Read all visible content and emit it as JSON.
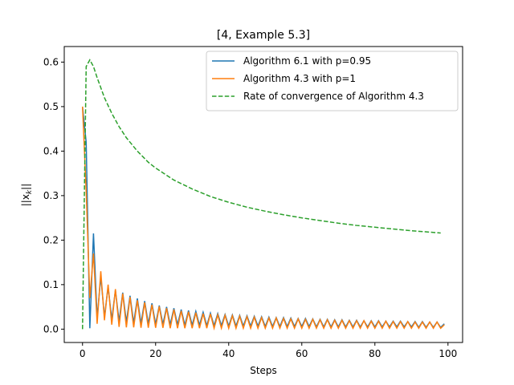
{
  "chart_data": {
    "type": "line",
    "title": "[4, Example 5.3]",
    "xlabel": "Steps",
    "ylabel": "||x_k||",
    "xlim": [
      -5,
      104
    ],
    "ylim": [
      -0.03,
      0.635
    ],
    "xticks": [
      0,
      20,
      40,
      60,
      80,
      100
    ],
    "yticks": [
      0.0,
      0.1,
      0.2,
      0.3,
      0.4,
      0.5,
      0.6
    ],
    "grid": false,
    "legend_position": "upper-right",
    "series": [
      {
        "name": "Algorithm 6.1 with p=0.95",
        "color": "#1f77b4",
        "style": "solid",
        "x": [
          0,
          1,
          2,
          3,
          4,
          5,
          6,
          7,
          8,
          9,
          10,
          11,
          12,
          13,
          14,
          15,
          16,
          17,
          18,
          19,
          20,
          21,
          22,
          23,
          24,
          25,
          26,
          27,
          28,
          29,
          30,
          31,
          32,
          33,
          34,
          35,
          36,
          37,
          38,
          39,
          40,
          41,
          42,
          43,
          44,
          45,
          46,
          47,
          48,
          49,
          50,
          51,
          52,
          53,
          54,
          55,
          56,
          57,
          58,
          59,
          60,
          61,
          62,
          63,
          64,
          65,
          66,
          67,
          68,
          69,
          70,
          71,
          72,
          73,
          74,
          75,
          76,
          77,
          78,
          79,
          80,
          81,
          82,
          83,
          84,
          85,
          86,
          87,
          88,
          89,
          90,
          91,
          92,
          93,
          94,
          95,
          96,
          97,
          98,
          99
        ],
        "y": [
          0.5,
          0.42,
          0.002,
          0.215,
          0.025,
          0.118,
          0.028,
          0.095,
          0.022,
          0.087,
          0.018,
          0.082,
          0.016,
          0.075,
          0.014,
          0.069,
          0.013,
          0.063,
          0.012,
          0.058,
          0.011,
          0.053,
          0.011,
          0.05,
          0.01,
          0.047,
          0.01,
          0.044,
          0.009,
          0.042,
          0.009,
          0.04,
          0.009,
          0.038,
          0.008,
          0.036,
          0.008,
          0.035,
          0.008,
          0.033,
          0.007,
          0.032,
          0.007,
          0.031,
          0.007,
          0.03,
          0.007,
          0.029,
          0.007,
          0.028,
          0.006,
          0.027,
          0.006,
          0.026,
          0.006,
          0.026,
          0.006,
          0.025,
          0.006,
          0.024,
          0.006,
          0.024,
          0.006,
          0.023,
          0.005,
          0.022,
          0.005,
          0.022,
          0.005,
          0.021,
          0.005,
          0.021,
          0.005,
          0.02,
          0.005,
          0.02,
          0.005,
          0.019,
          0.005,
          0.019,
          0.005,
          0.019,
          0.005,
          0.018,
          0.005,
          0.018,
          0.005,
          0.018,
          0.005,
          0.017,
          0.005,
          0.017,
          0.004,
          0.017,
          0.004,
          0.016,
          0.004,
          0.016,
          0.004,
          0.012
        ]
      },
      {
        "name": "Algorithm 4.3 with p=1",
        "color": "#ff7f0e",
        "style": "solid",
        "x": [
          0,
          1,
          2,
          3,
          4,
          5,
          6,
          7,
          8,
          9,
          10,
          11,
          12,
          13,
          14,
          15,
          16,
          17,
          18,
          19,
          20,
          21,
          22,
          23,
          24,
          25,
          26,
          27,
          28,
          29,
          30,
          31,
          32,
          33,
          34,
          35,
          36,
          37,
          38,
          39,
          40,
          41,
          42,
          43,
          44,
          45,
          46,
          47,
          48,
          49,
          50,
          51,
          52,
          53,
          54,
          55,
          56,
          57,
          58,
          59,
          60,
          61,
          62,
          63,
          64,
          65,
          66,
          67,
          68,
          69,
          70,
          71,
          72,
          73,
          74,
          75,
          76,
          77,
          78,
          79,
          80,
          81,
          82,
          83,
          84,
          85,
          86,
          87,
          88,
          89,
          90,
          91,
          92,
          93,
          94,
          95,
          96,
          97,
          98,
          99
        ],
        "y": [
          0.5,
          0.31,
          0.07,
          0.17,
          0.012,
          0.13,
          0.02,
          0.1,
          0.01,
          0.09,
          0.005,
          0.08,
          0.004,
          0.072,
          0.004,
          0.065,
          0.003,
          0.06,
          0.003,
          0.055,
          0.003,
          0.051,
          0.003,
          0.047,
          0.002,
          0.044,
          0.002,
          0.041,
          0.002,
          0.039,
          0.002,
          0.037,
          0.002,
          0.035,
          0.002,
          0.034,
          0.002,
          0.032,
          0.002,
          0.031,
          0.002,
          0.03,
          0.002,
          0.029,
          0.002,
          0.028,
          0.002,
          0.027,
          0.002,
          0.026,
          0.002,
          0.025,
          0.002,
          0.025,
          0.002,
          0.024,
          0.002,
          0.023,
          0.002,
          0.023,
          0.002,
          0.022,
          0.002,
          0.022,
          0.002,
          0.021,
          0.002,
          0.021,
          0.002,
          0.02,
          0.002,
          0.02,
          0.002,
          0.019,
          0.002,
          0.019,
          0.002,
          0.019,
          0.002,
          0.018,
          0.002,
          0.018,
          0.002,
          0.018,
          0.002,
          0.017,
          0.002,
          0.017,
          0.002,
          0.017,
          0.002,
          0.016,
          0.002,
          0.016,
          0.002,
          0.016,
          0.002,
          0.016,
          0.002,
          0.01
        ]
      },
      {
        "name": "Rate of convergence of Algorithm 4.3",
        "color": "#2ca02c",
        "style": "dashed",
        "x": [
          0,
          0.5,
          1,
          2,
          3,
          4,
          6,
          8,
          10,
          12,
          15,
          18,
          20,
          25,
          30,
          35,
          40,
          45,
          50,
          55,
          60,
          65,
          70,
          75,
          80,
          85,
          90,
          95,
          98
        ],
        "y": [
          0.0,
          0.3,
          0.59,
          0.605,
          0.59,
          0.565,
          0.52,
          0.485,
          0.455,
          0.43,
          0.4,
          0.375,
          0.362,
          0.335,
          0.315,
          0.298,
          0.285,
          0.274,
          0.265,
          0.257,
          0.25,
          0.244,
          0.238,
          0.233,
          0.229,
          0.225,
          0.221,
          0.218,
          0.216
        ]
      }
    ]
  }
}
